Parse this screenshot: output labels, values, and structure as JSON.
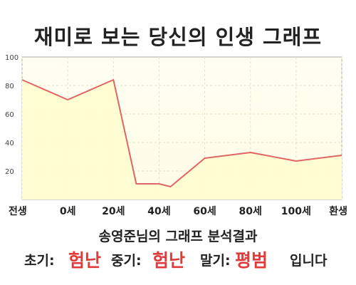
{
  "title": "재미로 보는 당신의 인생 그래프",
  "summary": {
    "heading": "송영준님의 그래프 분석결과",
    "early_label": "초기:",
    "early_value": "험난",
    "middle_label": "중기:",
    "middle_value": "험난",
    "late_label": "말기:",
    "late_value": "평범",
    "ending": "입니다"
  },
  "colors": {
    "line": "#e06666",
    "fill": "#fffdd0",
    "highlight_text": "#e03a3a"
  },
  "chart_data": {
    "type": "area",
    "title": "재미로 보는 당신의 인생 그래프",
    "xlabel": "",
    "ylabel": "",
    "categories": [
      "전생",
      "0세",
      "20세",
      "40세",
      "60세",
      "80세",
      "100세",
      "환생"
    ],
    "x": [
      -20,
      0,
      20,
      30,
      40,
      45,
      60,
      80,
      100,
      120
    ],
    "values": [
      84,
      70,
      84,
      11,
      11,
      9,
      29,
      33,
      27,
      31
    ],
    "yticks": [
      20,
      40,
      60,
      80,
      100
    ],
    "ylim": [
      0,
      100
    ],
    "xlim": [
      -20,
      120
    ],
    "grid": true,
    "legend": "none"
  }
}
